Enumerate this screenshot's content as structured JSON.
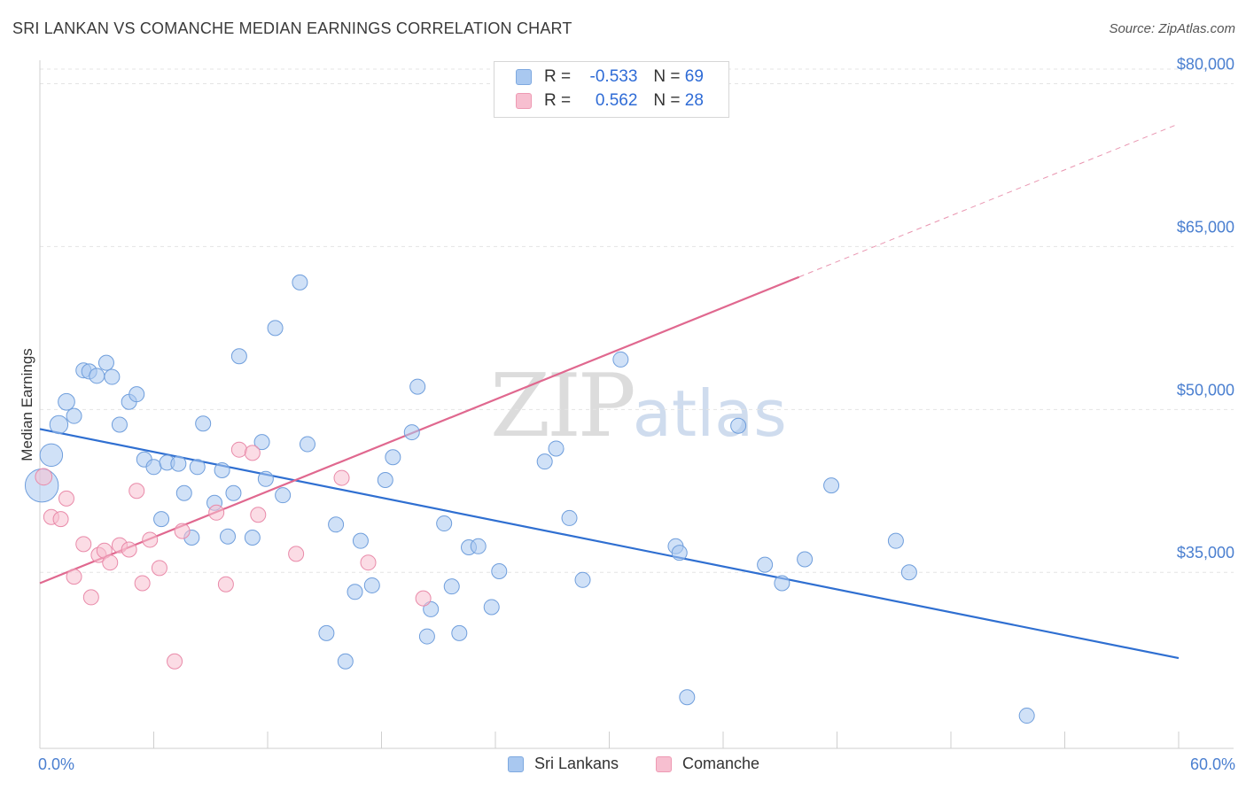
{
  "header": {
    "title": "SRI LANKAN VS COMANCHE MEDIAN EARNINGS CORRELATION CHART",
    "source": "Source: ZipAtlas.com"
  },
  "watermark": {
    "zip": "ZIP",
    "atlas": "atlas"
  },
  "legend": {
    "rows": [
      {
        "r_label": "R =",
        "r_value": "-0.533",
        "n_label": "N =",
        "n_value": "69",
        "color": "#a9c8f0",
        "border": "#7ea9e0"
      },
      {
        "r_label": "R =",
        "r_value": "0.562",
        "n_label": "N =",
        "n_value": "28",
        "color": "#f7bfd0",
        "border": "#ee9ab3"
      }
    ]
  },
  "bottom_legend": [
    {
      "label": "Sri Lankans",
      "color": "#a9c8f0",
      "border": "#7ea9e0"
    },
    {
      "label": "Comanche",
      "color": "#f7bfd0",
      "border": "#ee9ab3"
    }
  ],
  "chart_data": {
    "type": "scatter",
    "xlabel": "",
    "ylabel": "Median Earnings",
    "xlim": [
      0,
      60
    ],
    "ylim": [
      20500,
      82000
    ],
    "x_tick_labels": [
      {
        "value": 0,
        "label": "0.0%"
      },
      {
        "value": 60,
        "label": "60.0%"
      }
    ],
    "y_ticks": [
      {
        "value": 35000,
        "label": "$35,000"
      },
      {
        "value": 50000,
        "label": "$50,000"
      },
      {
        "value": 65000,
        "label": "$65,000"
      },
      {
        "value": 80000,
        "label": "$80,000"
      }
    ],
    "grid": true,
    "colors": {
      "sri_fill": "#a9c8f0",
      "sri_stroke": "#6f9edc",
      "sri_line": "#2f6fd1",
      "com_fill": "#f7bfd0",
      "com_stroke": "#e98aa9",
      "com_line": "#e0688f"
    },
    "series": [
      {
        "name": "Sri Lankans",
        "trend": {
          "x0": 0,
          "y0": 48200,
          "x1": 60,
          "y1": 27100,
          "dash_from": null
        },
        "points": [
          [
            0.1,
            43000,
            2.2
          ],
          [
            0.6,
            45800,
            1.5
          ],
          [
            1.0,
            48600,
            1.2
          ],
          [
            1.4,
            50700,
            1.1
          ],
          [
            1.8,
            49400,
            1.0
          ],
          [
            2.3,
            53600,
            1.0
          ],
          [
            2.6,
            53500,
            1.0
          ],
          [
            3.0,
            53100,
            1.0
          ],
          [
            3.5,
            54300,
            1.0
          ],
          [
            3.8,
            53000,
            1.0
          ],
          [
            4.2,
            48600,
            1.0
          ],
          [
            4.7,
            50700,
            1.0
          ],
          [
            5.1,
            51400,
            1.0
          ],
          [
            5.5,
            45400,
            1.0
          ],
          [
            6.0,
            44700,
            1.0
          ],
          [
            6.4,
            39900,
            1.0
          ],
          [
            6.7,
            45100,
            1.0
          ],
          [
            7.3,
            45000,
            1.0
          ],
          [
            7.6,
            42300,
            1.0
          ],
          [
            8.0,
            38200,
            1.0
          ],
          [
            8.3,
            44700,
            1.0
          ],
          [
            8.6,
            48700,
            1.0
          ],
          [
            9.2,
            41400,
            1.0
          ],
          [
            9.6,
            44400,
            1.0
          ],
          [
            9.9,
            38300,
            1.0
          ],
          [
            10.2,
            42300,
            1.0
          ],
          [
            10.5,
            54900,
            1.0
          ],
          [
            11.2,
            38200,
            1.0
          ],
          [
            11.7,
            47000,
            1.0
          ],
          [
            11.9,
            43600,
            1.0
          ],
          [
            12.4,
            57500,
            1.0
          ],
          [
            12.8,
            42100,
            1.0
          ],
          [
            13.7,
            61700,
            1.0
          ],
          [
            14.1,
            46800,
            1.0
          ],
          [
            15.1,
            29400,
            1.0
          ],
          [
            15.6,
            39400,
            1.0
          ],
          [
            16.1,
            26800,
            1.0
          ],
          [
            16.6,
            33200,
            1.0
          ],
          [
            16.9,
            37900,
            1.0
          ],
          [
            17.5,
            33800,
            1.0
          ],
          [
            18.2,
            43500,
            1.0
          ],
          [
            18.6,
            45600,
            1.0
          ],
          [
            19.6,
            47900,
            1.0
          ],
          [
            19.9,
            52100,
            1.0
          ],
          [
            20.4,
            29100,
            1.0
          ],
          [
            20.6,
            31600,
            1.0
          ],
          [
            21.3,
            39500,
            1.0
          ],
          [
            21.7,
            33700,
            1.0
          ],
          [
            22.1,
            29400,
            1.0
          ],
          [
            22.6,
            37300,
            1.0
          ],
          [
            23.1,
            37400,
            1.0
          ],
          [
            23.8,
            31800,
            1.0
          ],
          [
            24.2,
            35100,
            1.0
          ],
          [
            26.6,
            45200,
            1.0
          ],
          [
            27.2,
            46400,
            1.0
          ],
          [
            27.9,
            40000,
            1.0
          ],
          [
            28.6,
            34300,
            1.0
          ],
          [
            30.2,
            78300,
            1.0
          ],
          [
            30.6,
            54600,
            1.0
          ],
          [
            33.5,
            37400,
            1.0
          ],
          [
            33.7,
            36800,
            1.0
          ],
          [
            34.1,
            23500,
            1.0
          ],
          [
            36.8,
            48500,
            1.0
          ],
          [
            38.2,
            35700,
            1.0
          ],
          [
            39.1,
            34000,
            1.0
          ],
          [
            40.3,
            36200,
            1.0
          ],
          [
            41.7,
            43000,
            1.0
          ],
          [
            45.1,
            37900,
            1.0
          ],
          [
            45.8,
            35000,
            1.0
          ],
          [
            52.0,
            21800,
            1.0
          ]
        ]
      },
      {
        "name": "Comanche",
        "trend": {
          "x0": 0,
          "y0": 34000,
          "x1": 60,
          "y1": 76300,
          "dash_from": 40
        },
        "points": [
          [
            0.2,
            43800,
            1.1
          ],
          [
            0.6,
            40100,
            1.0
          ],
          [
            1.1,
            39900,
            1.0
          ],
          [
            1.4,
            41800,
            1.0
          ],
          [
            1.8,
            34600,
            1.0
          ],
          [
            2.3,
            37600,
            1.0
          ],
          [
            2.7,
            32700,
            1.0
          ],
          [
            3.1,
            36600,
            1.0
          ],
          [
            3.4,
            37000,
            1.0
          ],
          [
            3.7,
            35900,
            1.0
          ],
          [
            4.2,
            37500,
            1.0
          ],
          [
            4.7,
            37100,
            1.0
          ],
          [
            5.1,
            42500,
            1.0
          ],
          [
            5.4,
            34000,
            1.0
          ],
          [
            5.8,
            38000,
            1.0
          ],
          [
            6.3,
            35400,
            1.0
          ],
          [
            7.1,
            26800,
            1.0
          ],
          [
            7.5,
            38800,
            1.0
          ],
          [
            9.3,
            40500,
            1.0
          ],
          [
            9.8,
            33900,
            1.0
          ],
          [
            10.5,
            46300,
            1.0
          ],
          [
            11.2,
            46000,
            1.0
          ],
          [
            11.5,
            40300,
            1.0
          ],
          [
            13.5,
            36700,
            1.0
          ],
          [
            15.9,
            43700,
            1.0
          ],
          [
            17.3,
            35900,
            1.0
          ],
          [
            20.2,
            32600,
            1.0
          ],
          [
            30.8,
            78100,
            1.0
          ]
        ]
      }
    ]
  }
}
